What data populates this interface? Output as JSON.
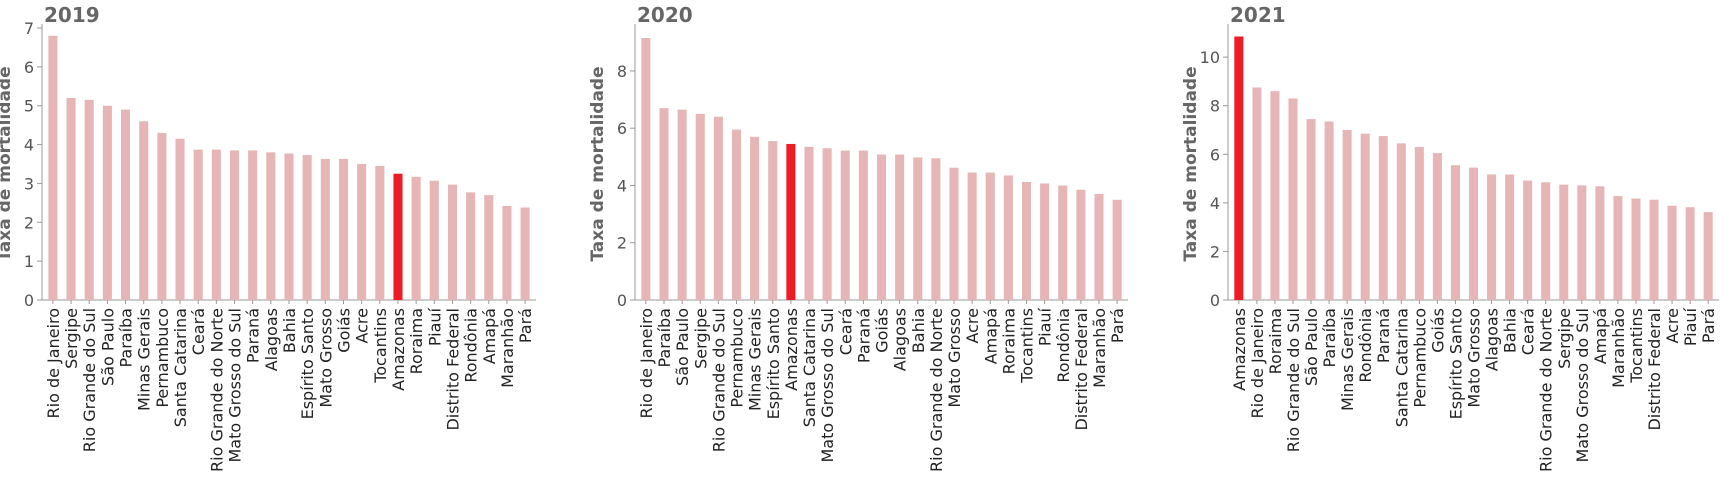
{
  "colors": {
    "bar": "#e5b6b5",
    "highlight": "#ee1c25",
    "axis": "#999999",
    "title": "#666666"
  },
  "chart_data": [
    {
      "type": "bar",
      "title": "2019",
      "ylabel": "Taxa de mortalidade",
      "ylim": [
        0,
        7
      ],
      "yticks": [
        0,
        1,
        2,
        3,
        4,
        5,
        6,
        7
      ],
      "highlight": "Amazonas",
      "categories": [
        "Rio de Janeiro",
        "Sergipe",
        "Rio Grande do Sul",
        "São Paulo",
        "Paraíba",
        "Minas Gerais",
        "Pernambuco",
        "Santa Catarina",
        "Ceará",
        "Rio Grande do Norte",
        "Mato Grosso do Sul",
        "Paraná",
        "Alagoas",
        "Bahia",
        "Espírito Santo",
        "Mato Grosso",
        "Goiás",
        "Acre",
        "Tocantins",
        "Amazonas",
        "Roraima",
        "Piauí",
        "Distrito Federal",
        "Rondônia",
        "Amapá",
        "Maranhão",
        "Pará"
      ],
      "values": [
        6.8,
        5.2,
        5.15,
        5.0,
        4.9,
        4.6,
        4.3,
        4.15,
        3.87,
        3.87,
        3.85,
        3.85,
        3.8,
        3.77,
        3.73,
        3.63,
        3.63,
        3.5,
        3.45,
        3.25,
        3.17,
        3.07,
        2.97,
        2.77,
        2.7,
        2.42,
        2.38
      ]
    },
    {
      "type": "bar",
      "title": "2020",
      "ylabel": "Taxa de mortalidade",
      "ylim": [
        0,
        9.5
      ],
      "yticks": [
        0,
        2,
        4,
        6,
        8
      ],
      "highlight": "Amazonas",
      "categories": [
        "Rio de Janeiro",
        "Paraíba",
        "São Paulo",
        "Sergipe",
        "Rio Grande do Sul",
        "Pernambuco",
        "Minas Gerais",
        "Espírito Santo",
        "Amazonas",
        "Santa Catarina",
        "Mato Grosso do Sul",
        "Ceará",
        "Paraná",
        "Goiás",
        "Alagoas",
        "Bahia",
        "Rio Grande do Norte",
        "Mato Grosso",
        "Acre",
        "Amapá",
        "Roraima",
        "Tocantins",
        "Piauí",
        "Rondônia",
        "Distrito Federal",
        "Maranhão",
        "Pará"
      ],
      "values": [
        9.15,
        6.7,
        6.65,
        6.5,
        6.4,
        5.95,
        5.7,
        5.55,
        5.45,
        5.35,
        5.3,
        5.22,
        5.22,
        5.08,
        5.08,
        4.98,
        4.95,
        4.62,
        4.45,
        4.45,
        4.35,
        4.12,
        4.07,
        4.0,
        3.85,
        3.7,
        3.5
      ]
    },
    {
      "type": "bar",
      "title": "2021",
      "ylabel": "Taxa de mortalidade",
      "ylim": [
        0,
        11.2
      ],
      "yticks": [
        0,
        2,
        4,
        6,
        8,
        10
      ],
      "highlight": "Amazonas",
      "categories": [
        "Amazonas",
        "Rio de Janeiro",
        "Roraima",
        "Rio Grande do Sul",
        "São Paulo",
        "Paraíba",
        "Minas Gerais",
        "Rondônia",
        "Paraná",
        "Santa Catarina",
        "Pernambuco",
        "Goiás",
        "Espírito Santo",
        "Mato Grosso",
        "Alagoas",
        "Bahia",
        "Ceará",
        "Rio Grande do Norte",
        "Sergipe",
        "Mato Grosso do Sul",
        "Amapá",
        "Maranhão",
        "Tocantins",
        "Distrito Federal",
        "Acre",
        "Piauí",
        "Pará"
      ],
      "values": [
        10.85,
        8.75,
        8.6,
        8.3,
        7.45,
        7.35,
        7.0,
        6.85,
        6.75,
        6.45,
        6.3,
        6.05,
        5.55,
        5.45,
        5.17,
        5.17,
        4.92,
        4.85,
        4.75,
        4.72,
        4.68,
        4.28,
        4.18,
        4.13,
        3.88,
        3.82,
        3.62
      ]
    }
  ]
}
